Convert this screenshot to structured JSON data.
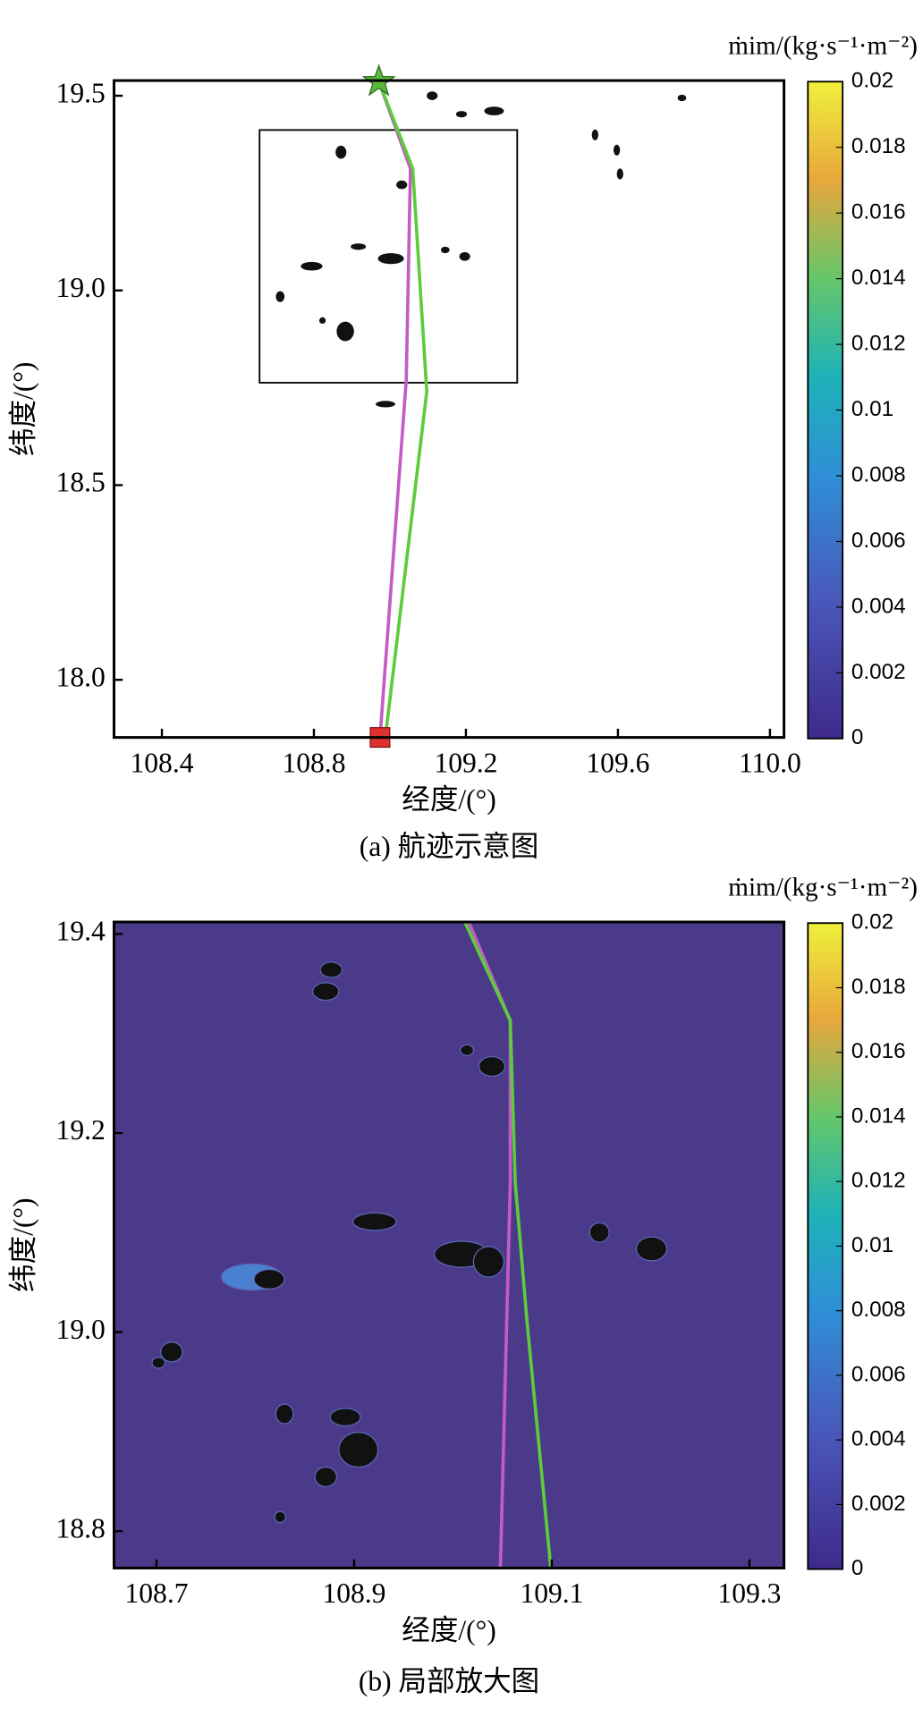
{
  "chart_data": [
    {
      "type": "line",
      "caption": "(a) 航迹示意图",
      "xlabel": "经度/(°)",
      "ylabel": "纬度/(°)",
      "colorbar_title": "ṁim/(kg·s⁻¹·m⁻²)",
      "background": "#ffffff",
      "xlim": [
        108.274,
        110.037
      ],
      "ylim": [
        17.852,
        19.539
      ],
      "xticks": [
        108.4,
        108.8,
        109.2,
        109.6,
        {
          "value": 110,
          "label": "110.0"
        }
      ],
      "yticks": [
        {
          "value": 18,
          "label": "18.0"
        },
        18.5,
        {
          "value": 19,
          "label": "19.0"
        },
        19.5
      ],
      "clim": [
        0,
        0.02
      ],
      "cticks": [
        0,
        0.002,
        0.004,
        0.006,
        0.008,
        0.01,
        0.012,
        0.014,
        0.016,
        0.018,
        0.02
      ],
      "series": [
        {
          "color": "#c45cc4",
          "x": [
            108.971,
            109.054,
            109.043,
            108.974
          ],
          "y": [
            19.536,
            19.313,
            18.77,
            17.852
          ]
        },
        {
          "color": "#5ccc3c",
          "x": [
            108.971,
            109.06,
            109.097,
            108.988
          ],
          "y": [
            19.536,
            19.313,
            18.74,
            17.852
          ]
        }
      ]
    },
    {
      "type": "line",
      "caption": "(b) 局部放大图",
      "xlabel": "经度/(°)",
      "ylabel": "纬度/(°)",
      "colorbar_title": "ṁim/(kg·s⁻¹·m⁻²)",
      "background": "#4b3a8a",
      "xlim": [
        108.657,
        109.335
      ],
      "ylim": [
        18.763,
        19.412
      ],
      "xticks": [
        108.7,
        108.9,
        109.1,
        109.3
      ],
      "yticks": [
        18.8,
        {
          "value": 19,
          "label": "19.0"
        },
        19.2,
        19.4
      ],
      "clim": [
        0,
        0.02
      ],
      "cticks": [
        0,
        0.002,
        0.004,
        0.006,
        0.008,
        0.01,
        0.012,
        0.014,
        0.016,
        0.018,
        0.02
      ],
      "series": [
        {
          "color": "#c45cc4",
          "x": [
            109.016,
            109.058,
            109.058,
            109.048
          ],
          "y": [
            19.412,
            19.313,
            19.15,
            18.763
          ]
        },
        {
          "color": "#5ccc3c",
          "x": [
            109.012,
            109.058,
            109.063,
            109.075,
            109.099
          ],
          "y": [
            19.412,
            19.313,
            19.15,
            19.01,
            18.763
          ]
        }
      ]
    }
  ]
}
